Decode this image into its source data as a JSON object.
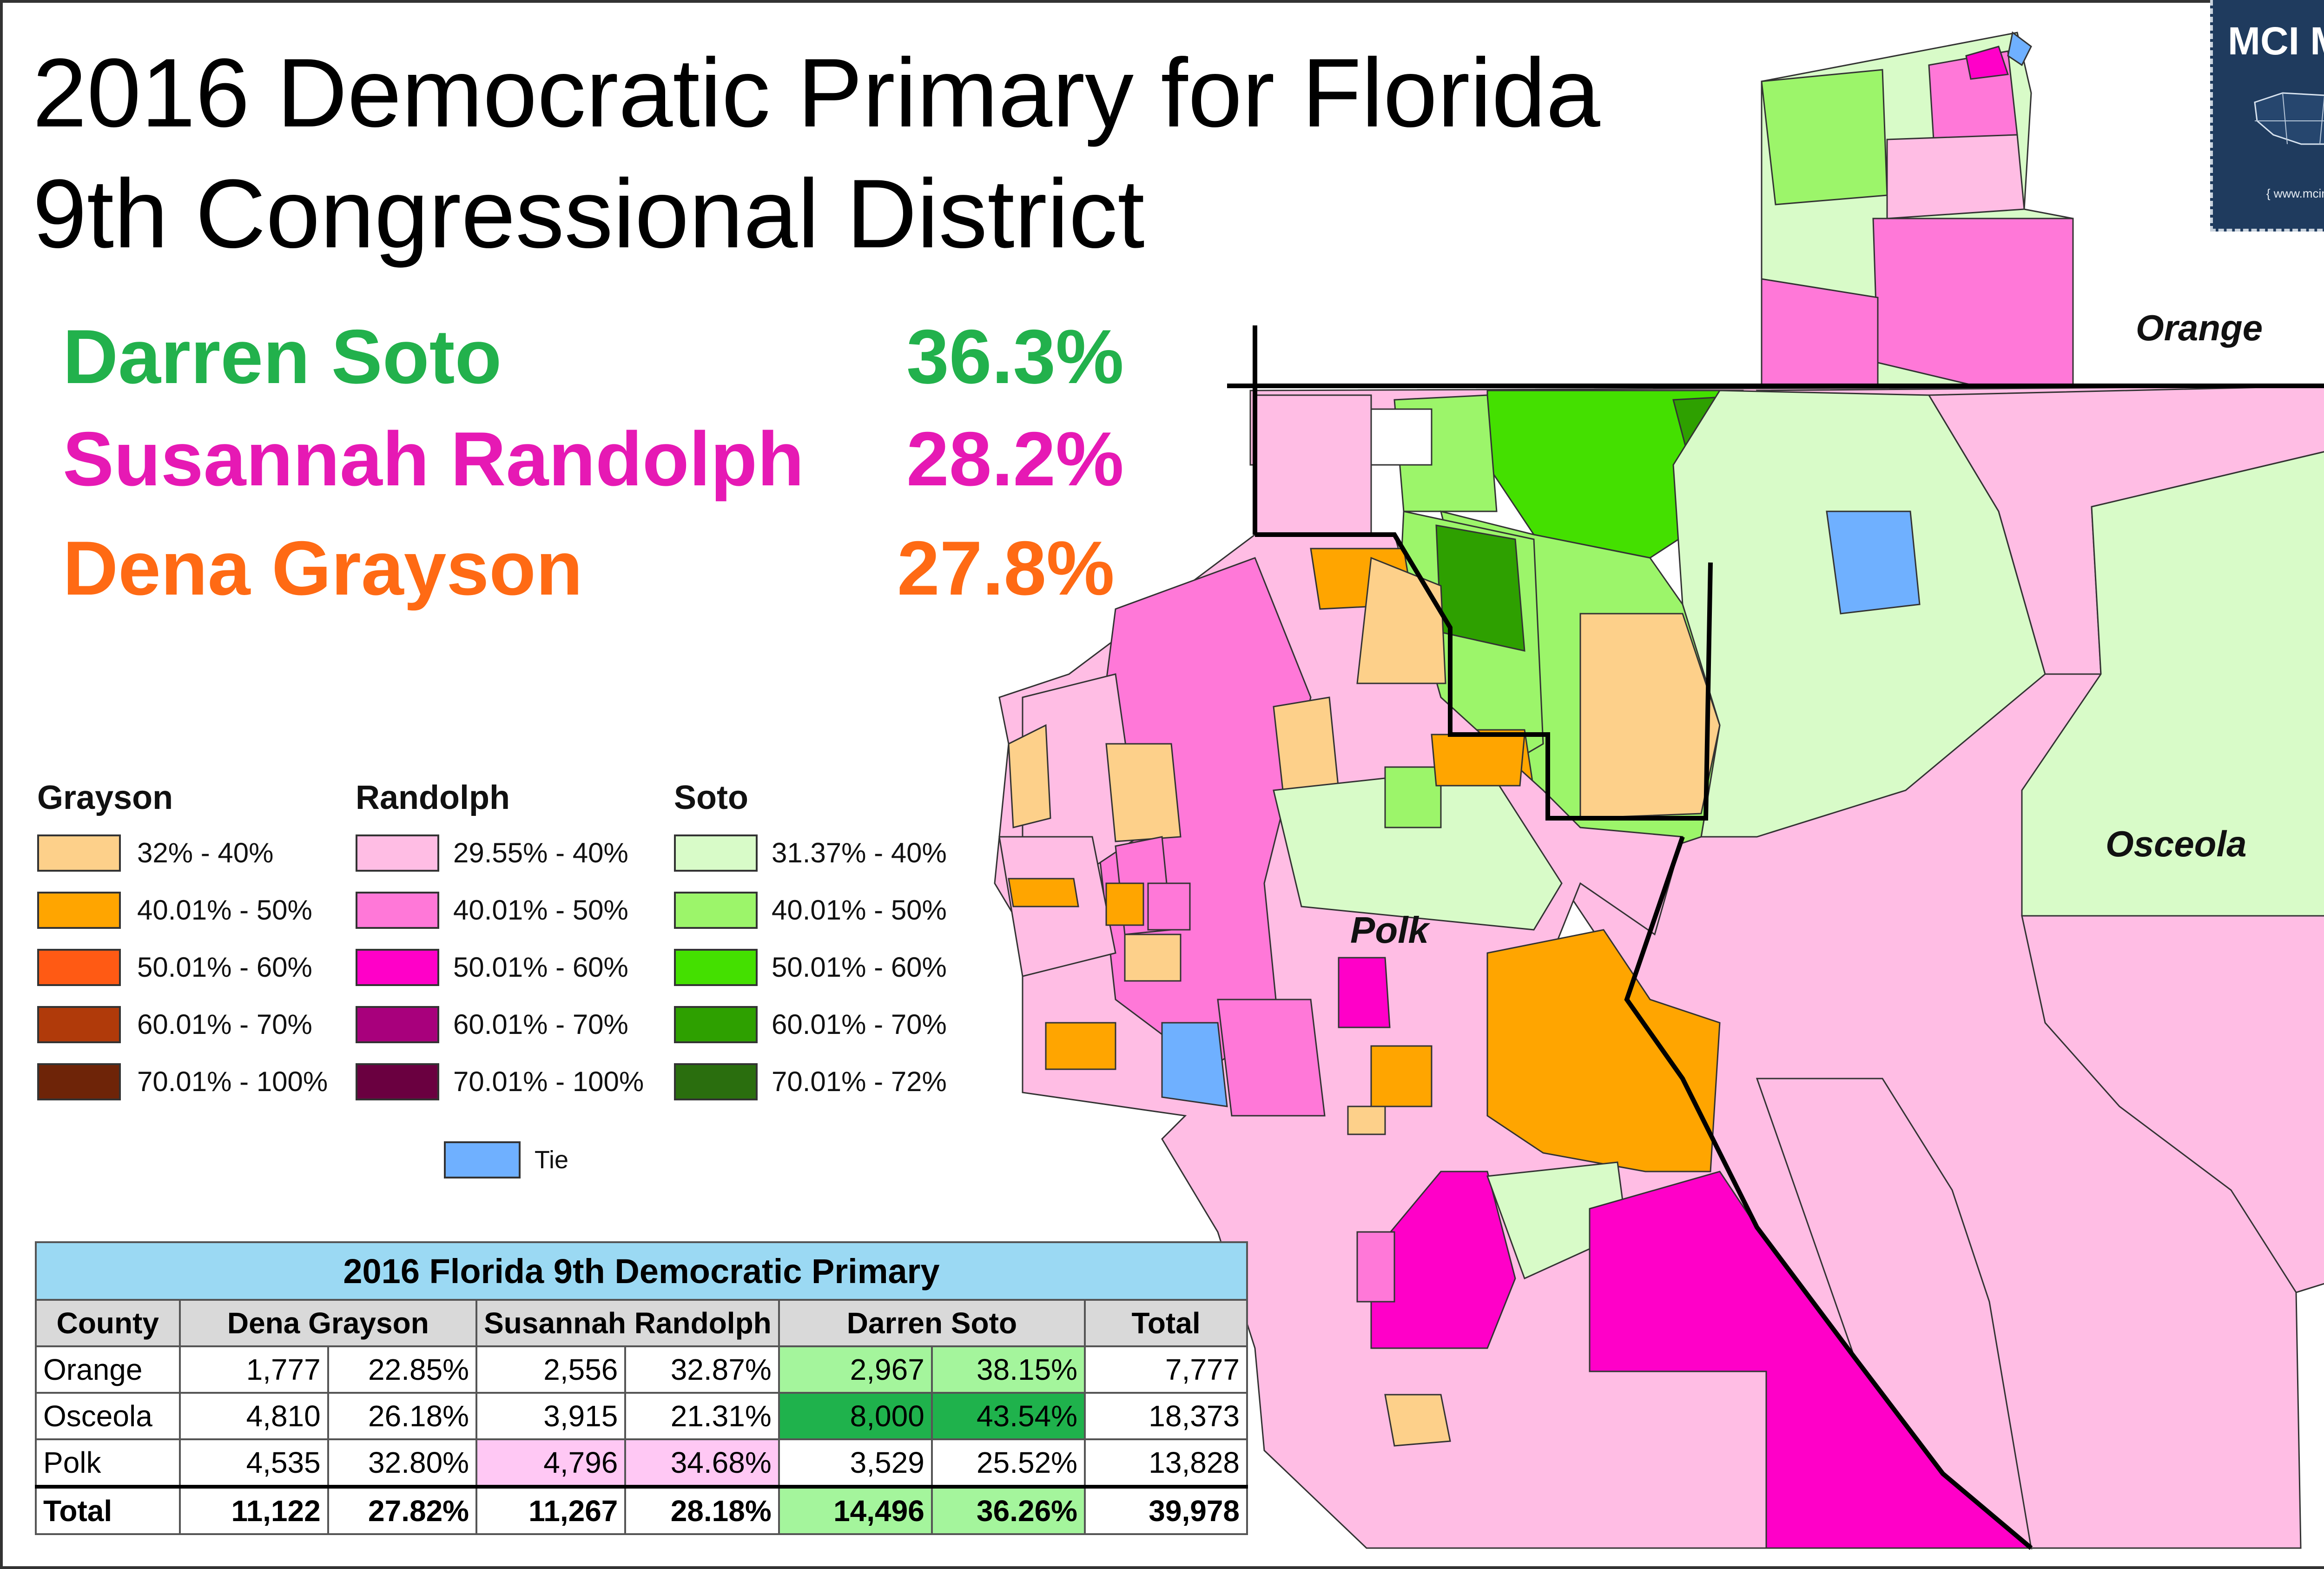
{
  "title_lines": [
    "2016 Democratic Primary for Florida",
    "9th Congressional District"
  ],
  "candidates": [
    {
      "name": "Darren Soto",
      "pct": "36.3%",
      "color": "#22b14c"
    },
    {
      "name": "Susannah Randolph",
      "pct": "28.2%",
      "color": "#e619b4"
    },
    {
      "name": "Dena Grayson",
      "pct": "27.8%",
      "color": "#ff6a14"
    }
  ],
  "badge": {
    "title": "MCI MAPS",
    "url": "{ www.mcimaps.com }"
  },
  "county_labels": {
    "orange": "Orange",
    "osceola": "Osceola",
    "polk": "Polk"
  },
  "legend": {
    "grayson": {
      "heading": "Grayson",
      "items": [
        {
          "label": "32% - 40%",
          "color": "#fdd08a"
        },
        {
          "label": "40.01% - 50%",
          "color": "#ffa500"
        },
        {
          "label": "50.01% - 60%",
          "color": "#ff5a14"
        },
        {
          "label": "60.01% - 70%",
          "color": "#b03a0a"
        },
        {
          "label": "70.01% - 100%",
          "color": "#6e2408"
        }
      ]
    },
    "randolph": {
      "heading": "Randolph",
      "items": [
        {
          "label": "29.55% - 40%",
          "color": "#ffbde4"
        },
        {
          "label": "40.01% - 50%",
          "color": "#ff78d8"
        },
        {
          "label": "50.01% - 60%",
          "color": "#ff00c8"
        },
        {
          "label": "60.01% - 70%",
          "color": "#a8007c"
        },
        {
          "label": "70.01% - 100%",
          "color": "#6a0040"
        }
      ]
    },
    "soto": {
      "heading": "Soto",
      "items": [
        {
          "label": "31.37% - 40%",
          "color": "#d8fbc8"
        },
        {
          "label": "40.01% - 50%",
          "color": "#9cf56a"
        },
        {
          "label": "50.01% - 60%",
          "color": "#44e000"
        },
        {
          "label": "60.01% - 70%",
          "color": "#2ea000"
        },
        {
          "label": "70.01% - 72%",
          "color": "#2a6e0e"
        }
      ]
    },
    "tie": {
      "label": "Tie",
      "color": "#6fb0ff"
    }
  },
  "table": {
    "caption": "2016 Florida 9th Democratic Primary",
    "headers": [
      "County",
      "Dena Grayson",
      "Susannah Randolph",
      "Darren Soto",
      "Total"
    ],
    "rows": [
      {
        "county": "Orange",
        "grayson_votes": "1,777",
        "grayson_pct": "22.85%",
        "randolph_votes": "2,556",
        "randolph_pct": "32.87%",
        "soto_votes": "2,967",
        "soto_pct": "38.15%",
        "total": "7,777",
        "winner": "soto",
        "winner_color": "#a4f59c"
      },
      {
        "county": "Osceola",
        "grayson_votes": "4,810",
        "grayson_pct": "26.18%",
        "randolph_votes": "3,915",
        "randolph_pct": "21.31%",
        "soto_votes": "8,000",
        "soto_pct": "43.54%",
        "total": "18,373",
        "winner": "soto",
        "winner_color": "#1fb24c"
      },
      {
        "county": "Polk",
        "grayson_votes": "4,535",
        "grayson_pct": "32.80%",
        "randolph_votes": "4,796",
        "randolph_pct": "34.68%",
        "soto_votes": "3,529",
        "soto_pct": "25.52%",
        "total": "13,828",
        "winner": "randolph",
        "winner_color": "#ffc8f4"
      },
      {
        "county": "Total",
        "grayson_votes": "11,122",
        "grayson_pct": "27.82%",
        "randolph_votes": "11,267",
        "randolph_pct": "28.18%",
        "soto_votes": "14,496",
        "soto_pct": "36.26%",
        "total": "39,978",
        "winner": "soto",
        "winner_color": "#a4f59c"
      }
    ]
  }
}
